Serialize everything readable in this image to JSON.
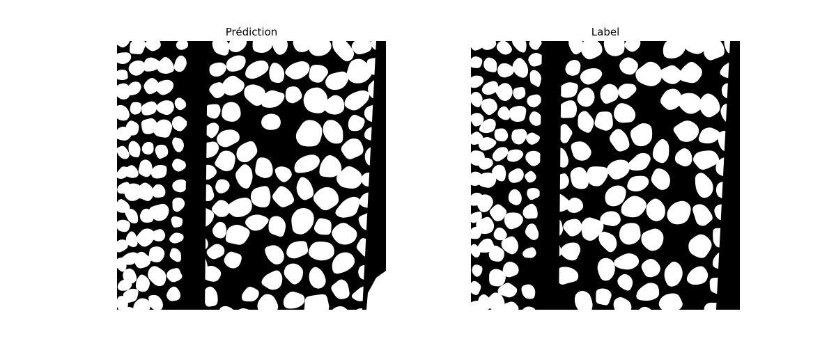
{
  "figure": {
    "panels": [
      {
        "title": "Prédiction"
      },
      {
        "title": "Label"
      }
    ]
  },
  "colors": {
    "background": "#ffffff",
    "mask_bg": "#000000",
    "mask_fg": "#ffffff"
  },
  "image_kind": "binary segmentation masks"
}
